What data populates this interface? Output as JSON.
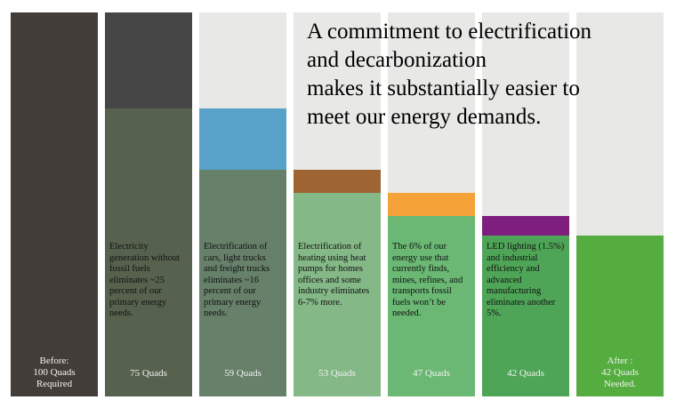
{
  "headline": {
    "lines": [
      "A commitment to electrification",
      "and decarbonization",
      "makes it substantially easier to",
      "meet our energy demands."
    ]
  },
  "chart_data": {
    "type": "bar",
    "unit": "Quads",
    "ylim": [
      0,
      100
    ],
    "bars": [
      {
        "category": "Before",
        "value": 100,
        "label_lines": [
          "Before:",
          "100 Quads",
          "Required"
        ],
        "remaining_color": "#433d39",
        "description_lines": []
      },
      {
        "category": "Electricity generation",
        "value": 75,
        "reduction": 25,
        "label_lines": [
          "75 Quads"
        ],
        "remaining_color": "#57624e",
        "removed_color": "#464646",
        "description_lines": [
          "Electricity",
          "generation without",
          "fossil fuels",
          "eliminates ~25",
          "percent of our",
          "primary energy",
          "needs."
        ]
      },
      {
        "category": "Electrification of transport",
        "value": 59,
        "reduction": 16,
        "label_lines": [
          "59 Quads"
        ],
        "remaining_color": "#66806a",
        "removed_color": "#58a2ca",
        "description_lines": [
          "Electrification of",
          "cars, light trucks",
          "and freight trucks",
          "eliminates ~16",
          "percent of our",
          "primary energy",
          "needs."
        ]
      },
      {
        "category": "Electrification of heating",
        "value": 53,
        "reduction": 6,
        "label_lines": [
          "53 Quads"
        ],
        "remaining_color": "#85b887",
        "removed_color": "#9e6432",
        "description_lines": [
          "Electrification of",
          "heating using heat",
          "pumps for homes",
          "offices and some",
          "industry eliminates",
          "6-7% more."
        ]
      },
      {
        "category": "Fossil fuel extraction",
        "value": 47,
        "reduction": 6,
        "label_lines": [
          "47 Quads"
        ],
        "remaining_color": "#6ab874",
        "removed_color": "#f5a239",
        "description_lines": [
          "The 6% of our",
          "energy use that",
          "currently finds,",
          "mines, refines, and",
          "transports fossil",
          "fuels won’t be",
          "needed."
        ]
      },
      {
        "category": "LED lighting and industrial efficiency",
        "value": 42,
        "reduction": 5,
        "label_lines": [
          "42 Quads"
        ],
        "remaining_color": "#4fa557",
        "removed_color": "#7e1f80",
        "description_lines": [
          "LED lighting (1.5%)",
          "and industrial",
          "efficiency and",
          "advanced",
          "manufacturing",
          "eliminates another",
          "5%."
        ]
      },
      {
        "category": "After",
        "value": 42,
        "label_lines": [
          "After :",
          "42 Quads",
          "Needed."
        ],
        "remaining_color": "#54ad3e",
        "description_lines": []
      }
    ]
  }
}
